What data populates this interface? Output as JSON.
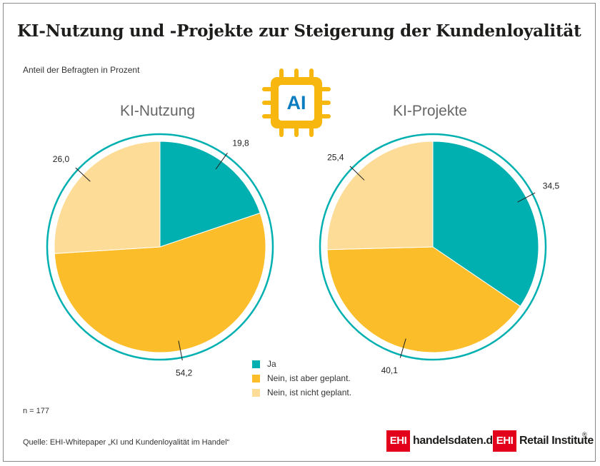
{
  "title": "KI-Nutzung und -Projekte zur Steigerung der Kundenloyalität",
  "subtitle": "Anteil der Befragten in Prozent",
  "ai_badge": {
    "text": "AI",
    "icon": "ai-chip-icon",
    "color": "#f7b70f",
    "text_color": "#0a7cc0"
  },
  "chart_data": [
    {
      "type": "pie",
      "title": "KI-Nutzung",
      "categories": [
        "Ja",
        "Nein, ist aber geplant.",
        "Nein, ist nicht geplant."
      ],
      "values": [
        19.8,
        54.2,
        26.0
      ],
      "labels": [
        "19,8",
        "54,2",
        "26,0"
      ],
      "colors": [
        "#00b0b0",
        "#fbbd2a",
        "#fddc97"
      ]
    },
    {
      "type": "pie",
      "title": "KI-Projekte",
      "categories": [
        "Ja",
        "Nein, ist aber geplant.",
        "Nein, ist nicht geplant."
      ],
      "values": [
        34.5,
        40.1,
        25.4
      ],
      "labels": [
        "34,5",
        "40,1",
        "25,4"
      ],
      "colors": [
        "#00b0b0",
        "#fbbd2a",
        "#fddc97"
      ]
    }
  ],
  "legend": {
    "items": [
      {
        "label": "Ja",
        "color": "#00b0b0"
      },
      {
        "label": "Nein, ist aber geplant.",
        "color": "#fbbd2a"
      },
      {
        "label": "Nein, ist nicht geplant.",
        "color": "#fddc97"
      }
    ]
  },
  "footer": {
    "n": "n = 177",
    "source": "Quelle: EHI-Whitepaper „KI und Kundenloyalität im Handel“"
  },
  "logos": {
    "ehi": "EHI",
    "handelsdaten": "handelsdaten.de",
    "retail": "Retail Institute",
    "reg": "®",
    "brand_color": "#e2001a"
  }
}
